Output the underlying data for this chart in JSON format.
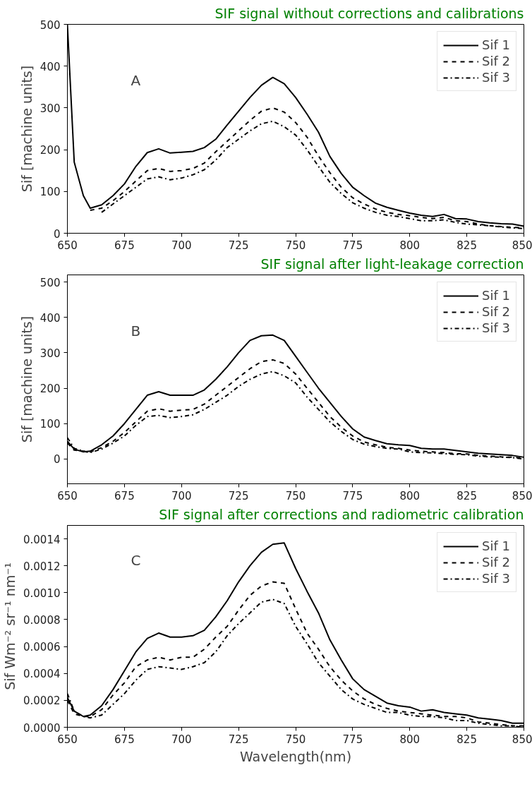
{
  "chart_data": [
    {
      "type": "line",
      "title": "SIF signal without corrections and calibrations",
      "ylabel": "Sif [machine units]",
      "annotations": [
        "A"
      ],
      "x": [
        650,
        653,
        657,
        660,
        665,
        670,
        675,
        680,
        685,
        690,
        695,
        700,
        705,
        710,
        715,
        720,
        725,
        730,
        735,
        740,
        745,
        750,
        755,
        760,
        765,
        770,
        775,
        780,
        785,
        790,
        795,
        800,
        805,
        810,
        815,
        820,
        825,
        830,
        835,
        840,
        845,
        850
      ],
      "xlim": [
        650,
        850
      ],
      "xticks": [
        650,
        675,
        700,
        725,
        750,
        775,
        800,
        825,
        850
      ],
      "ylim": [
        0,
        500
      ],
      "yticks": [
        0,
        100,
        200,
        300,
        400,
        500
      ],
      "legend": "top right",
      "grid": false,
      "series": [
        {
          "name": "Sif 1",
          "color": "#000000",
          "line_style": "solid",
          "values": [
            500,
            170,
            90,
            60,
            68,
            90,
            118,
            160,
            193,
            202,
            192,
            194,
            196,
            205,
            225,
            259,
            292,
            325,
            354,
            373,
            358,
            325,
            285,
            242,
            184,
            143,
            110,
            90,
            72,
            62,
            55,
            48,
            43,
            40,
            45,
            35,
            34,
            28,
            25,
            23,
            22,
            17
          ]
        },
        {
          "name": "Sif 2",
          "color": "#000000",
          "line_style": "dashed",
          "values": [
            null,
            null,
            null,
            55,
            60,
            78,
            100,
            125,
            150,
            155,
            148,
            150,
            155,
            168,
            195,
            220,
            245,
            270,
            292,
            300,
            290,
            265,
            230,
            185,
            145,
            110,
            85,
            70,
            58,
            50,
            45,
            42,
            38,
            35,
            38,
            30,
            28,
            22,
            18,
            16,
            14,
            13
          ]
        },
        {
          "name": "Sif 3",
          "color": "#000000",
          "line_style": "dashdot",
          "values": [
            null,
            null,
            null,
            null,
            50,
            70,
            90,
            110,
            130,
            135,
            128,
            132,
            140,
            152,
            175,
            205,
            225,
            245,
            262,
            268,
            255,
            235,
            200,
            160,
            122,
            95,
            73,
            60,
            50,
            43,
            40,
            35,
            30,
            30,
            32,
            26,
            22,
            20,
            18,
            15,
            13,
            11
          ]
        }
      ]
    },
    {
      "type": "line",
      "title": "SIF signal after light-leakage correction",
      "ylabel": "Sif [machine units]",
      "annotations": [
        "B"
      ],
      "x": [
        650,
        653,
        657,
        660,
        665,
        670,
        675,
        680,
        685,
        690,
        695,
        700,
        705,
        710,
        715,
        720,
        725,
        730,
        735,
        740,
        745,
        750,
        755,
        760,
        765,
        770,
        775,
        780,
        785,
        790,
        795,
        800,
        805,
        810,
        815,
        820,
        825,
        830,
        835,
        840,
        845,
        850
      ],
      "xlim": [
        650,
        850
      ],
      "xticks": [
        650,
        675,
        700,
        725,
        750,
        775,
        800,
        825,
        850
      ],
      "ylim": [
        -70,
        520
      ],
      "yticks": [
        0,
        100,
        200,
        300,
        400,
        500
      ],
      "legend": "top right",
      "grid": false,
      "series": [
        {
          "name": "Sif 1",
          "color": "#000000",
          "line_style": "solid",
          "values": [
            50,
            28,
            20,
            22,
            40,
            65,
            100,
            140,
            180,
            190,
            180,
            180,
            180,
            195,
            225,
            260,
            300,
            335,
            348,
            350,
            335,
            290,
            245,
            200,
            160,
            120,
            85,
            62,
            52,
            43,
            40,
            38,
            30,
            28,
            28,
            24,
            20,
            16,
            14,
            12,
            10,
            5
          ]
        },
        {
          "name": "Sif 2",
          "color": "#000000",
          "line_style": "dashed",
          "values": [
            45,
            25,
            22,
            20,
            32,
            50,
            75,
            105,
            135,
            142,
            135,
            138,
            140,
            155,
            180,
            205,
            230,
            255,
            275,
            280,
            270,
            240,
            200,
            160,
            120,
            90,
            65,
            48,
            40,
            33,
            30,
            25,
            22,
            20,
            18,
            15,
            14,
            10,
            8,
            6,
            5,
            2
          ]
        },
        {
          "name": "Sif 3",
          "color": "#000000",
          "line_style": "dashdot",
          "values": [
            60,
            30,
            22,
            18,
            28,
            45,
            65,
            95,
            120,
            123,
            117,
            120,
            125,
            140,
            160,
            180,
            205,
            225,
            240,
            247,
            235,
            215,
            175,
            140,
            105,
            78,
            55,
            42,
            35,
            30,
            28,
            20,
            18,
            17,
            15,
            13,
            12,
            8,
            6,
            5,
            4,
            0
          ]
        }
      ]
    },
    {
      "type": "line",
      "title": "SIF signal after corrections and radiometric calibration",
      "ylabel": "Sif Wm⁻² sr⁻¹ nm⁻¹",
      "xlabel": "Wavelength(nm)",
      "annotations": [
        "C"
      ],
      "x": [
        650,
        653,
        657,
        660,
        665,
        670,
        675,
        680,
        685,
        690,
        695,
        700,
        705,
        710,
        715,
        720,
        725,
        730,
        735,
        740,
        745,
        750,
        755,
        760,
        765,
        770,
        775,
        780,
        785,
        790,
        795,
        800,
        805,
        810,
        815,
        820,
        825,
        830,
        835,
        840,
        845,
        850
      ],
      "xlim": [
        650,
        850
      ],
      "xticks": [
        650,
        675,
        700,
        725,
        750,
        775,
        800,
        825,
        850
      ],
      "ylim": [
        0,
        0.0015
      ],
      "yticks": [
        {
          "value": 0,
          "label": "0.0000"
        },
        {
          "value": 0.0002,
          "label": "0.0002"
        },
        {
          "value": 0.0004,
          "label": "0.0004"
        },
        {
          "value": 0.0006,
          "label": "0.0006"
        },
        {
          "value": 0.0008,
          "label": "0.0008"
        },
        {
          "value": 0.001,
          "label": "0.0010"
        },
        {
          "value": 0.0012,
          "label": "0.0012"
        },
        {
          "value": 0.0014,
          "label": "0.0014"
        }
      ],
      "legend": "top right",
      "grid": false,
      "series": [
        {
          "name": "Sif 1",
          "color": "#000000",
          "line_style": "solid",
          "values": [
            0.00022,
            0.00012,
            8e-05,
            9e-05,
            0.00016,
            0.00028,
            0.00042,
            0.00056,
            0.00066,
            0.0007,
            0.00067,
            0.00067,
            0.00068,
            0.00072,
            0.00082,
            0.00094,
            0.00108,
            0.0012,
            0.0013,
            0.00136,
            0.00137,
            0.00118,
            0.00101,
            0.00085,
            0.00065,
            0.0005,
            0.00036,
            0.00028,
            0.00023,
            0.00018,
            0.00016,
            0.00015,
            0.00012,
            0.00013,
            0.00011,
            0.0001,
            9e-05,
            7e-05,
            6e-05,
            5e-05,
            3e-05,
            3e-05
          ]
        },
        {
          "name": "Sif 2",
          "color": "#000000",
          "line_style": "dashed",
          "values": [
            0.0002,
            0.0001,
            8e-05,
            8e-05,
            0.00013,
            0.00024,
            0.00033,
            0.00045,
            0.0005,
            0.00052,
            0.0005,
            0.00052,
            0.00052,
            0.00058,
            0.00067,
            0.00075,
            0.00087,
            0.00098,
            0.00105,
            0.00108,
            0.00107,
            0.00088,
            0.0007,
            0.00058,
            0.00045,
            0.00035,
            0.00027,
            0.00021,
            0.00017,
            0.00014,
            0.00012,
            0.00011,
            0.0001,
            9e-05,
            8e-05,
            8e-05,
            7e-05,
            4e-05,
            3e-05,
            2e-05,
            1e-05,
            1e-05
          ]
        },
        {
          "name": "Sif 3",
          "color": "#000000",
          "line_style": "dashdot",
          "values": [
            0.00025,
            0.00012,
            8e-05,
            7e-05,
            9e-05,
            0.00017,
            0.00025,
            0.00035,
            0.00043,
            0.00045,
            0.00044,
            0.00043,
            0.00045,
            0.00048,
            0.00056,
            0.00068,
            0.00077,
            0.00085,
            0.00093,
            0.00095,
            0.00092,
            0.00075,
            0.00062,
            0.00048,
            0.00038,
            0.00028,
            0.00021,
            0.00017,
            0.00014,
            0.00011,
            0.00011,
            9e-05,
            8e-05,
            8e-05,
            7e-05,
            5e-05,
            5e-05,
            3e-05,
            2e-05,
            1e-05,
            1e-05,
            0
          ]
        }
      ]
    }
  ]
}
